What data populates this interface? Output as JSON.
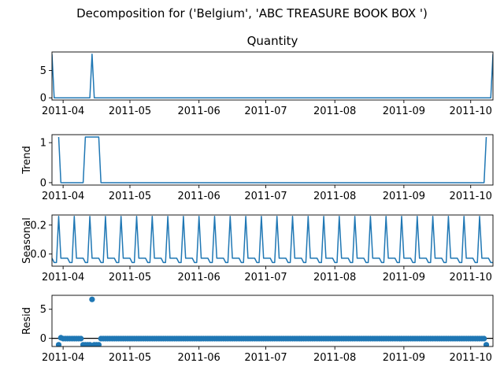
{
  "chart_data": {
    "type": "line",
    "suptitle": "Decomposition for ('Belgium', 'ABC TREASURE BOOK BOX ')",
    "x_start": "2011-03-27",
    "x_end": "2011-10-11",
    "x_ticks": [
      {
        "date": "2011-04-01",
        "label": "2011-04"
      },
      {
        "date": "2011-05-01",
        "label": "2011-05"
      },
      {
        "date": "2011-06-01",
        "label": "2011-06"
      },
      {
        "date": "2011-07-01",
        "label": "2011-07"
      },
      {
        "date": "2011-08-01",
        "label": "2011-08"
      },
      {
        "date": "2011-09-01",
        "label": "2011-09"
      },
      {
        "date": "2011-10-01",
        "label": "2011-10"
      }
    ],
    "color": "#1f77b4",
    "panels": [
      {
        "key": "observed",
        "title": "Quantity",
        "ylabel": "",
        "style": "line",
        "ylim": [
          -0.4,
          8.4
        ],
        "yticks": [
          {
            "value": 0,
            "label": "0"
          },
          {
            "value": 5,
            "label": "5"
          }
        ],
        "points": [
          [
            "2011-03-27",
            8
          ],
          [
            "2011-03-28",
            0
          ],
          [
            "2011-04-13",
            0
          ],
          [
            "2011-04-14",
            8
          ],
          [
            "2011-04-15",
            0
          ],
          [
            "2011-10-10",
            0
          ],
          [
            "2011-10-11",
            8
          ]
        ]
      },
      {
        "key": "trend",
        "title": "",
        "ylabel": "Trend",
        "style": "line",
        "ylim": [
          -0.06,
          1.2
        ],
        "yticks": [
          {
            "value": 0,
            "label": "0"
          },
          {
            "value": 1,
            "label": "1"
          }
        ],
        "points": [
          [
            "2011-03-30",
            1.14
          ],
          [
            "2011-03-31",
            0
          ],
          [
            "2011-04-10",
            0
          ],
          [
            "2011-04-11",
            1.14
          ],
          [
            "2011-04-17",
            1.14
          ],
          [
            "2011-04-18",
            0
          ],
          [
            "2011-10-07",
            0
          ],
          [
            "2011-10-08",
            1.14
          ]
        ]
      },
      {
        "key": "seasonal",
        "title": "",
        "ylabel": "Seasonal",
        "style": "seasonal",
        "ylim": [
          -0.085,
          0.27
        ],
        "yticks": [
          {
            "value": 0.2,
            "label": "0.2"
          },
          {
            "value": 0,
            "label": "0.0"
          }
        ],
        "cycle": [
          0.26,
          -0.03,
          -0.03,
          -0.03,
          -0.03,
          -0.06,
          -0.06
        ],
        "cycle_anchor": "2011-03-30"
      },
      {
        "key": "resid",
        "title": "",
        "ylabel": "Resid",
        "style": "scatter",
        "baseline": 0,
        "ylim": [
          -1.4,
          7.4
        ],
        "yticks": [
          {
            "value": 0,
            "label": "0"
          },
          {
            "value": 5,
            "label": "5"
          }
        ],
        "default_value": -0.05,
        "points": [
          [
            "2011-03-30",
            -1.1
          ],
          [
            "2011-03-31",
            0.1
          ],
          [
            "2011-04-10",
            -1.1
          ],
          [
            "2011-04-11",
            -1.1
          ],
          [
            "2011-04-12",
            -1.1
          ],
          [
            "2011-04-13",
            -1.1
          ],
          [
            "2011-04-14",
            6.7
          ],
          [
            "2011-04-15",
            -1.1
          ],
          [
            "2011-04-16",
            -1.1
          ],
          [
            "2011-04-17",
            -1.1
          ],
          [
            "2011-10-08",
            -1.1
          ]
        ],
        "range": [
          "2011-03-30",
          "2011-10-08"
        ]
      }
    ]
  }
}
